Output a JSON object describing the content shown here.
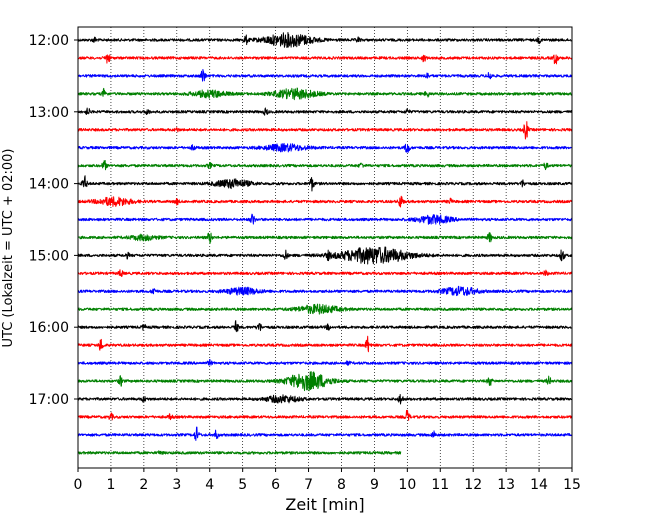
{
  "chart_data": {
    "type": "line",
    "title": "",
    "xlabel": "Zeit  [min]",
    "ylabel": "UTC (Lokalzeit = UTC + 02:00)",
    "xlim": [
      0,
      15
    ],
    "x_ticks": [
      "0",
      "1",
      "2",
      "3",
      "4",
      "5",
      "6",
      "7",
      "8",
      "9",
      "10",
      "11",
      "12",
      "13",
      "14",
      "15"
    ],
    "y_ticks": [
      "12:00",
      "13:00",
      "14:00",
      "15:00",
      "16:00",
      "17:00"
    ],
    "grid": "vertical dotted",
    "row_interval_min": 15,
    "colors": [
      "#000000",
      "#ff0000",
      "#0000ff",
      "#008000"
    ],
    "rows": [
      {
        "start": "12:00",
        "color": "#000000",
        "end_min": 15,
        "events": [
          {
            "t": 0.5,
            "a": 0.3
          },
          {
            "t": 5.1,
            "a": 0.5
          },
          {
            "t": 6.4,
            "a": 0.8,
            "w": 1.4
          },
          {
            "t": 8.5,
            "a": 0.3
          },
          {
            "t": 14.0,
            "a": 0.3
          }
        ]
      },
      {
        "start": "12:15",
        "color": "#ff0000",
        "end_min": 15,
        "events": [
          {
            "t": 0.9,
            "a": 0.7
          },
          {
            "t": 10.5,
            "a": 0.4
          },
          {
            "t": 14.5,
            "a": 0.8
          }
        ]
      },
      {
        "start": "12:30",
        "color": "#0000ff",
        "end_min": 15,
        "events": [
          {
            "t": 3.8,
            "a": 1.0
          },
          {
            "t": 10.6,
            "a": 0.3
          },
          {
            "t": 12.5,
            "a": 0.5
          }
        ]
      },
      {
        "start": "12:45",
        "color": "#008000",
        "end_min": 15,
        "events": [
          {
            "t": 0.8,
            "a": 0.6
          },
          {
            "t": 4.0,
            "a": 0.4,
            "w": 1.0
          },
          {
            "t": 6.6,
            "a": 0.6,
            "w": 1.2
          },
          {
            "t": 10.6,
            "a": 0.4
          }
        ]
      },
      {
        "start": "13:00",
        "color": "#000000",
        "end_min": 15,
        "events": [
          {
            "t": 0.3,
            "a": 0.4
          },
          {
            "t": 2.1,
            "a": 0.3
          },
          {
            "t": 5.7,
            "a": 0.4
          },
          {
            "t": 10.0,
            "a": 0.3
          }
        ]
      },
      {
        "start": "13:15",
        "color": "#ff0000",
        "end_min": 15,
        "events": [
          {
            "t": 3.0,
            "a": 0.2
          },
          {
            "t": 13.6,
            "a": 1.2
          }
        ]
      },
      {
        "start": "13:30",
        "color": "#0000ff",
        "end_min": 15,
        "events": [
          {
            "t": 3.5,
            "a": 0.3
          },
          {
            "t": 6.3,
            "a": 0.4,
            "w": 1.2
          },
          {
            "t": 10.0,
            "a": 0.8
          }
        ]
      },
      {
        "start": "13:45",
        "color": "#008000",
        "end_min": 15,
        "events": [
          {
            "t": 0.8,
            "a": 0.6
          },
          {
            "t": 4.0,
            "a": 0.3
          },
          {
            "t": 8.6,
            "a": 0.3
          },
          {
            "t": 14.2,
            "a": 0.4
          }
        ]
      },
      {
        "start": "14:00",
        "color": "#000000",
        "end_min": 15,
        "events": [
          {
            "t": 0.2,
            "a": 0.9
          },
          {
            "t": 4.7,
            "a": 0.5,
            "w": 1.0
          },
          {
            "t": 7.1,
            "a": 0.8
          },
          {
            "t": 13.5,
            "a": 0.4
          }
        ]
      },
      {
        "start": "14:15",
        "color": "#ff0000",
        "end_min": 15,
        "events": [
          {
            "t": 1.1,
            "a": 0.5,
            "w": 1.0
          },
          {
            "t": 3.0,
            "a": 0.3
          },
          {
            "t": 9.8,
            "a": 0.8
          },
          {
            "t": 11.3,
            "a": 0.3
          }
        ]
      },
      {
        "start": "14:30",
        "color": "#0000ff",
        "end_min": 15,
        "events": [
          {
            "t": 5.3,
            "a": 0.7
          },
          {
            "t": 10.8,
            "a": 0.5,
            "w": 1.0
          }
        ]
      },
      {
        "start": "14:45",
        "color": "#008000",
        "end_min": 15,
        "events": [
          {
            "t": 2.0,
            "a": 0.3,
            "w": 0.8
          },
          {
            "t": 4.0,
            "a": 0.7
          },
          {
            "t": 12.5,
            "a": 0.6
          }
        ]
      },
      {
        "start": "15:00",
        "color": "#000000",
        "end_min": 15,
        "events": [
          {
            "t": 1.5,
            "a": 0.3
          },
          {
            "t": 6.3,
            "a": 0.6
          },
          {
            "t": 7.6,
            "a": 0.4
          },
          {
            "t": 9.0,
            "a": 1.0,
            "w": 2.0
          },
          {
            "t": 14.7,
            "a": 0.8
          }
        ]
      },
      {
        "start": "15:15",
        "color": "#ff0000",
        "end_min": 15,
        "events": [
          {
            "t": 1.3,
            "a": 0.4
          },
          {
            "t": 14.2,
            "a": 0.3
          }
        ]
      },
      {
        "start": "15:30",
        "color": "#0000ff",
        "end_min": 15,
        "events": [
          {
            "t": 2.3,
            "a": 0.4
          },
          {
            "t": 5.0,
            "a": 0.4,
            "w": 1.0
          },
          {
            "t": 11.6,
            "a": 0.5,
            "w": 1.0
          }
        ]
      },
      {
        "start": "15:45",
        "color": "#008000",
        "end_min": 15,
        "events": [
          {
            "t": 7.3,
            "a": 0.5,
            "w": 1.2
          }
        ]
      },
      {
        "start": "16:00",
        "color": "#000000",
        "end_min": 15,
        "events": [
          {
            "t": 2.0,
            "a": 0.3
          },
          {
            "t": 4.8,
            "a": 0.7
          },
          {
            "t": 5.5,
            "a": 0.6
          },
          {
            "t": 7.6,
            "a": 0.3
          }
        ]
      },
      {
        "start": "16:15",
        "color": "#ff0000",
        "end_min": 15,
        "events": [
          {
            "t": 0.7,
            "a": 0.8
          },
          {
            "t": 8.8,
            "a": 1.0
          }
        ]
      },
      {
        "start": "16:30",
        "color": "#0000ff",
        "end_min": 15,
        "events": [
          {
            "t": 4.0,
            "a": 0.3
          },
          {
            "t": 8.2,
            "a": 0.2
          }
        ]
      },
      {
        "start": "16:45",
        "color": "#008000",
        "end_min": 15,
        "events": [
          {
            "t": 1.3,
            "a": 0.6
          },
          {
            "t": 7.0,
            "a": 1.1,
            "w": 1.2
          },
          {
            "t": 12.5,
            "a": 0.6
          },
          {
            "t": 14.3,
            "a": 0.5
          }
        ]
      },
      {
        "start": "17:00",
        "color": "#000000",
        "end_min": 15,
        "events": [
          {
            "t": 2.0,
            "a": 0.3
          },
          {
            "t": 6.2,
            "a": 0.4,
            "w": 1.0
          },
          {
            "t": 9.8,
            "a": 0.7
          }
        ]
      },
      {
        "start": "17:15",
        "color": "#ff0000",
        "end_min": 15,
        "events": [
          {
            "t": 1.0,
            "a": 0.4
          },
          {
            "t": 2.8,
            "a": 0.3
          },
          {
            "t": 10.0,
            "a": 0.8
          }
        ]
      },
      {
        "start": "17:30",
        "color": "#0000ff",
        "end_min": 15,
        "events": [
          {
            "t": 3.6,
            "a": 0.9
          },
          {
            "t": 4.2,
            "a": 0.5
          },
          {
            "t": 10.8,
            "a": 0.4
          }
        ]
      },
      {
        "start": "17:45",
        "color": "#008000",
        "end_min": 9.8,
        "events": [
          {
            "t": 2.5,
            "a": 0.2
          }
        ]
      }
    ]
  }
}
